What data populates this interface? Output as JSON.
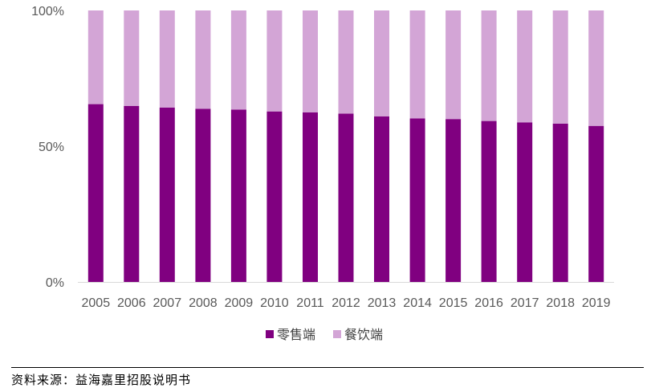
{
  "chart_data": {
    "type": "bar",
    "stacked": true,
    "categories": [
      "2005",
      "2006",
      "2007",
      "2008",
      "2009",
      "2010",
      "2011",
      "2012",
      "2013",
      "2014",
      "2015",
      "2016",
      "2017",
      "2018",
      "2019"
    ],
    "series": [
      {
        "name": "零售端",
        "color": "#800080",
        "values": [
          65.5,
          64.8,
          64.2,
          63.8,
          63.5,
          62.8,
          62.5,
          62.0,
          61.0,
          60.2,
          60.0,
          59.3,
          58.8,
          58.3,
          57.5
        ]
      },
      {
        "name": "餐饮端",
        "color": "#d3a5d6",
        "values": [
          34.5,
          35.2,
          35.8,
          36.2,
          36.5,
          37.2,
          37.5,
          38.0,
          39.0,
          39.8,
          40.0,
          40.7,
          41.2,
          41.7,
          42.5
        ]
      }
    ],
    "y_ticks": [
      "0%",
      "50%",
      "100%"
    ],
    "ylim": [
      0,
      100
    ],
    "grid": false,
    "legend_position": "bottom"
  },
  "source_note": "资料来源：益海嘉里招股说明书"
}
